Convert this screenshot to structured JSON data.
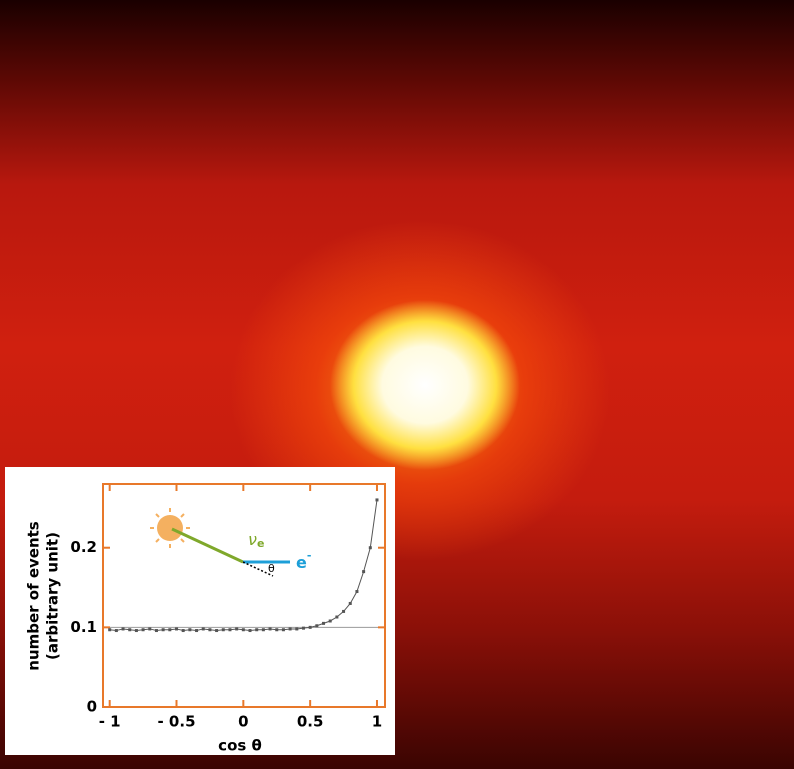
{
  "chart_data": {
    "type": "line",
    "ylabel": [
      "number of events",
      "(arbitrary unit)"
    ],
    "xlabel": "cos θ",
    "xlim": [
      -1.05,
      1.06
    ],
    "ylim": [
      0,
      0.28
    ],
    "xticks": [
      {
        "value": -1,
        "label": "- 1"
      },
      {
        "value": -0.5,
        "label": "- 0.5"
      },
      0,
      0.5,
      1
    ],
    "yticks": [
      0,
      0.1,
      0.2
    ],
    "reference_line": 0.1,
    "axis_color": "#e8782a",
    "series": [
      {
        "color": "#555555",
        "x": [
          -1,
          -0.95,
          -0.9,
          -0.85,
          -0.8,
          -0.75,
          -0.7,
          -0.65,
          -0.6,
          -0.55,
          -0.5,
          -0.45,
          -0.4,
          -0.35,
          -0.3,
          -0.25,
          -0.2,
          -0.15,
          -0.1,
          -0.05,
          0,
          0.05,
          0.1,
          0.15,
          0.2,
          0.25,
          0.3,
          0.35,
          0.4,
          0.45,
          0.5,
          0.55,
          0.6,
          0.65,
          0.7,
          0.75,
          0.8,
          0.85,
          0.9,
          0.95,
          1
        ],
        "values": [
          0.097,
          0.096,
          0.098,
          0.097,
          0.096,
          0.097,
          0.098,
          0.096,
          0.097,
          0.097,
          0.098,
          0.096,
          0.097,
          0.096,
          0.098,
          0.097,
          0.096,
          0.097,
          0.097,
          0.098,
          0.097,
          0.096,
          0.097,
          0.097,
          0.098,
          0.097,
          0.097,
          0.098,
          0.098,
          0.099,
          0.1,
          0.102,
          0.105,
          0.108,
          0.113,
          0.12,
          0.13,
          0.145,
          0.17,
          0.2,
          0.26
        ]
      }
    ],
    "diagram": {
      "nu": "ν",
      "nu_sub": "e",
      "electron": "e",
      "electron_sup": "-",
      "angle": "θ",
      "nu_color": "#7fa82b",
      "electron_color": "#1d9fd8"
    }
  }
}
